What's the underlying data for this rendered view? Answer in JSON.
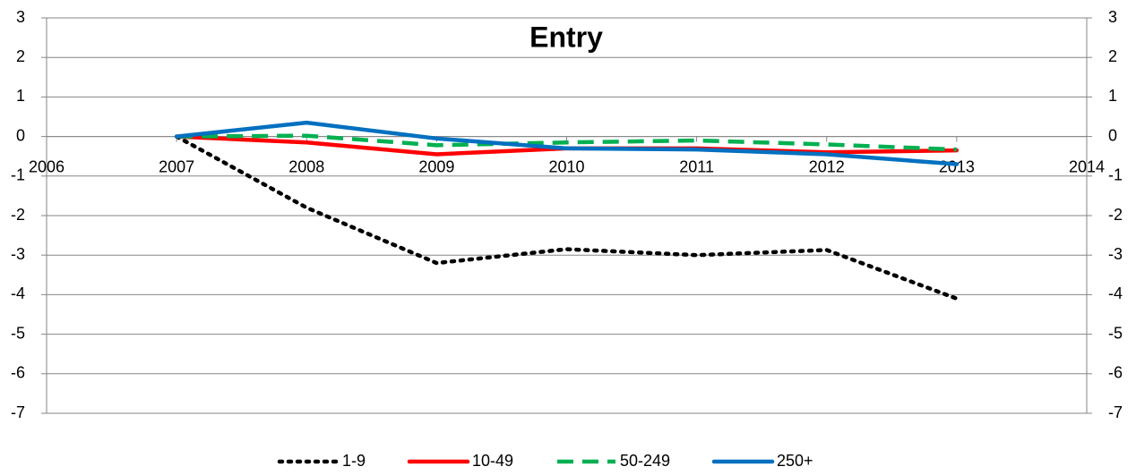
{
  "chart_data": {
    "type": "line",
    "title": "Entry",
    "x": [
      2007,
      2008,
      2009,
      2010,
      2011,
      2012,
      2013
    ],
    "series": [
      {
        "name": "1-9",
        "color": "#000000",
        "line_style": "dotted",
        "values": [
          0,
          -1.8,
          -3.2,
          -2.85,
          -3.0,
          -2.87,
          -4.1
        ]
      },
      {
        "name": "10-49",
        "color": "#ff0000",
        "line_style": "solid",
        "values": [
          0,
          -0.15,
          -0.45,
          -0.3,
          -0.3,
          -0.4,
          -0.35
        ]
      },
      {
        "name": "50-249",
        "color": "#00b050",
        "line_style": "dashed",
        "values": [
          0,
          0.02,
          -0.22,
          -0.15,
          -0.1,
          -0.2,
          -0.33
        ]
      },
      {
        "name": "250+",
        "color": "#0070c0",
        "line_style": "solid",
        "values": [
          0,
          0.35,
          -0.05,
          -0.3,
          -0.33,
          -0.45,
          -0.7
        ]
      }
    ],
    "xlim": [
      2006,
      2014
    ],
    "xticks": [
      2006,
      2007,
      2008,
      2009,
      2010,
      2011,
      2012,
      2013,
      2014
    ],
    "ylim": [
      -7,
      3
    ],
    "yticks": [
      3,
      2,
      1,
      0,
      -1,
      -2,
      -3,
      -4,
      -5,
      -6,
      -7
    ],
    "y2lim": [
      -7,
      3
    ],
    "y2ticks": [
      3,
      2,
      1,
      0,
      -1,
      -2,
      -3,
      -4,
      -5,
      -6,
      -7
    ],
    "grid": true,
    "legend": "bottom"
  }
}
